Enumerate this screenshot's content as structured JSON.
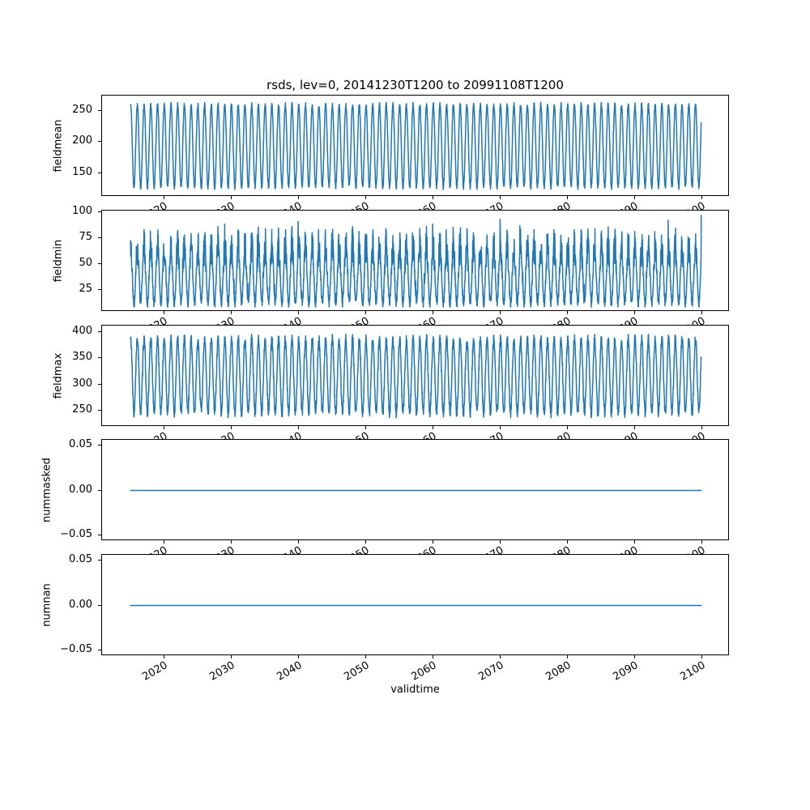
{
  "chart_data": {
    "type": "line",
    "title": "rsds, lev=0, 20141230T1200 to 20991108T1200",
    "xlabel": "validtime",
    "line_color": "#1f77b4",
    "line_width": 1.5,
    "grid": false,
    "legend": "none",
    "x_start": 2014.99,
    "x_end": 2099.86,
    "xlim": [
      2010.75,
      2104.1
    ],
    "samples_per_year": 36,
    "xticks": [
      {
        "v": 2020,
        "label": "2020"
      },
      {
        "v": 2030,
        "label": "2030"
      },
      {
        "v": 2040,
        "label": "2040"
      },
      {
        "v": 2050,
        "label": "2050"
      },
      {
        "v": 2060,
        "label": "2060"
      },
      {
        "v": 2070,
        "label": "2070"
      },
      {
        "v": 2080,
        "label": "2080"
      },
      {
        "v": 2090,
        "label": "2090"
      },
      {
        "v": 2100,
        "label": "2100"
      }
    ],
    "subplots": [
      {
        "name": "fieldmean",
        "ylabel": "fieldmean",
        "ylim": [
          112.6,
          274.4
        ],
        "yticks": [
          {
            "v": 150,
            "label": "150"
          },
          {
            "v": 200,
            "label": "200"
          },
          {
            "v": 250,
            "label": "250"
          }
        ],
        "observed_range": [
          123,
          266
        ],
        "model": {
          "kind": "seasonal",
          "mean": 194,
          "amplitude": 66,
          "noise": 4,
          "seed": 11
        }
      },
      {
        "name": "fieldmin",
        "ylabel": "fieldmin",
        "ylim": [
          3.4,
          101.6
        ],
        "yticks": [
          {
            "v": 25,
            "label": "25"
          },
          {
            "v": 50,
            "label": "50"
          },
          {
            "v": 75,
            "label": "75"
          },
          {
            "v": 100,
            "label": "100"
          }
        ],
        "observed_range": [
          8,
          97
        ],
        "model": {
          "kind": "seasonal-noisy",
          "mean": 40,
          "amplitude": 28,
          "noise_base": 5,
          "noise_peak": 14,
          "spike_prob": 0.015,
          "spike_add": 12,
          "clamp": [
            8,
            97
          ],
          "end_value": 97,
          "seed": 22
        }
      },
      {
        "name": "fieldmax",
        "ylabel": "fieldmax",
        "ylim": [
          219,
          412
        ],
        "yticks": [
          {
            "v": 250,
            "label": "250"
          },
          {
            "v": 300,
            "label": "300"
          },
          {
            "v": 350,
            "label": "350"
          },
          {
            "v": 400,
            "label": "400"
          }
        ],
        "observed_range": [
          228,
          403
        ],
        "model": {
          "kind": "seasonal",
          "mean": 316,
          "amplitude": 70,
          "noise": 10,
          "seed": 33
        }
      },
      {
        "name": "nummasked",
        "ylabel": "nummasked",
        "ylim": [
          -0.056,
          0.056
        ],
        "yticks": [
          {
            "v": -0.05,
            "label": "−0.05"
          },
          {
            "v": 0.0,
            "label": "0.00"
          },
          {
            "v": 0.05,
            "label": "0.05"
          }
        ],
        "observed_range": [
          0,
          0
        ],
        "model": {
          "kind": "constant",
          "value": 0
        }
      },
      {
        "name": "numnan",
        "ylabel": "numnan",
        "ylim": [
          -0.056,
          0.056
        ],
        "yticks": [
          {
            "v": -0.05,
            "label": "−0.05"
          },
          {
            "v": 0.0,
            "label": "0.00"
          },
          {
            "v": 0.05,
            "label": "0.05"
          }
        ],
        "observed_range": [
          0,
          0
        ],
        "model": {
          "kind": "constant",
          "value": 0
        }
      }
    ]
  }
}
